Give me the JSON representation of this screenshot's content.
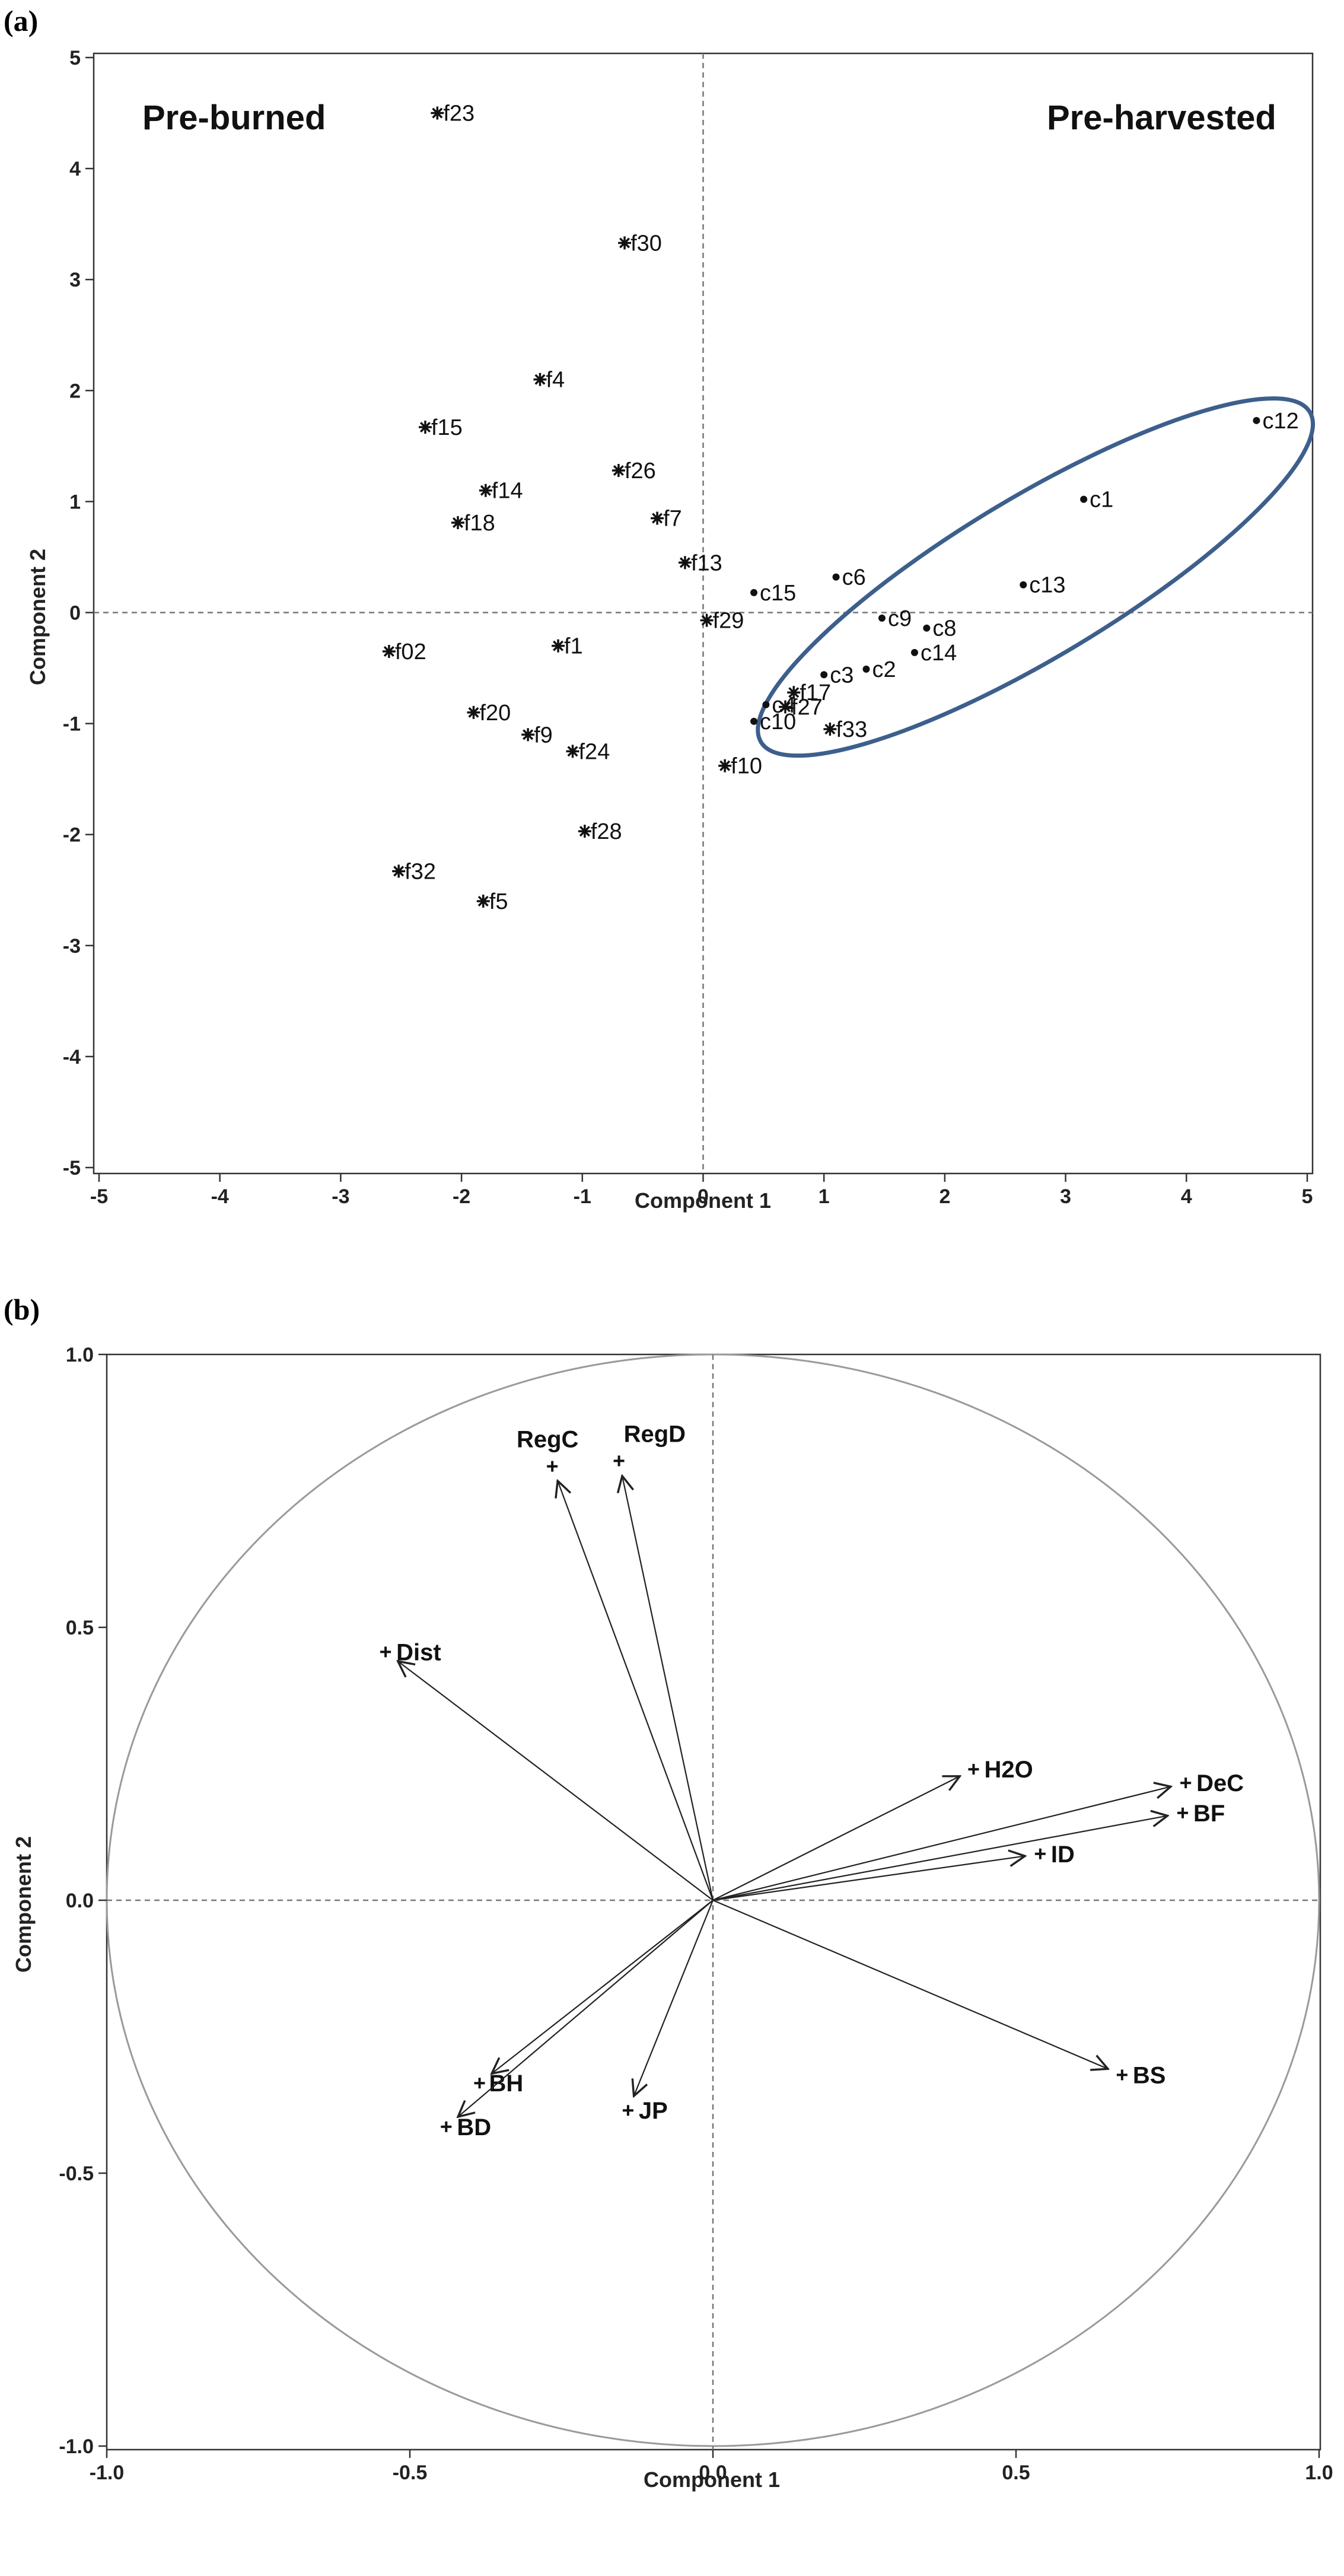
{
  "chart_data": [
    {
      "panel": "(a)",
      "type": "scatter",
      "xlabel": "Component 1",
      "ylabel": "Component 2",
      "xlim": [
        -5,
        5
      ],
      "ylim": [
        -5,
        5
      ],
      "xticks": [
        -5,
        -4,
        -3,
        -2,
        -1,
        0,
        1,
        2,
        3,
        4,
        5
      ],
      "yticks": [
        -5,
        -4,
        -3,
        -2,
        -1,
        0,
        1,
        2,
        3,
        4,
        5
      ],
      "reference_lines": {
        "x": 0,
        "y": 0
      },
      "annotations": {
        "left": "Pre-burned",
        "right": "Pre-harvested"
      },
      "cluster_ellipse": {
        "center": [
          2.75,
          0.32
        ],
        "semi_axes": [
          2.65,
          0.72
        ],
        "angle_deg": 31,
        "color": "#3d5f8c"
      },
      "points": [
        {
          "label": "f23",
          "x": -2.2,
          "y": 4.5,
          "marker": "*"
        },
        {
          "label": "f30",
          "x": -0.65,
          "y": 3.33,
          "marker": "*"
        },
        {
          "label": "f4",
          "x": -1.35,
          "y": 2.1,
          "marker": "*"
        },
        {
          "label": "f15",
          "x": -2.3,
          "y": 1.67,
          "marker": "*"
        },
        {
          "label": "f26",
          "x": -0.7,
          "y": 1.28,
          "marker": "*"
        },
        {
          "label": "f14",
          "x": -1.8,
          "y": 1.1,
          "marker": "*"
        },
        {
          "label": "f7",
          "x": -0.38,
          "y": 0.85,
          "marker": "*"
        },
        {
          "label": "f18",
          "x": -2.03,
          "y": 0.81,
          "marker": "*"
        },
        {
          "label": "f13",
          "x": -0.15,
          "y": 0.45,
          "marker": "*"
        },
        {
          "label": "f29",
          "x": 0.03,
          "y": -0.07,
          "marker": "*"
        },
        {
          "label": "f1",
          "x": -1.2,
          "y": -0.3,
          "marker": "*"
        },
        {
          "label": "f02",
          "x": -2.6,
          "y": -0.35,
          "marker": "*"
        },
        {
          "label": "f20",
          "x": -1.9,
          "y": -0.9,
          "marker": "*"
        },
        {
          "label": "f9",
          "x": -1.45,
          "y": -1.1,
          "marker": "*"
        },
        {
          "label": "f24",
          "x": -1.08,
          "y": -1.25,
          "marker": "*"
        },
        {
          "label": "f17",
          "x": 0.75,
          "y": -0.72,
          "marker": "*"
        },
        {
          "label": "f27",
          "x": 0.68,
          "y": -0.85,
          "marker": "*"
        },
        {
          "label": "f33",
          "x": 1.05,
          "y": -1.05,
          "marker": "*"
        },
        {
          "label": "f10",
          "x": 0.18,
          "y": -1.38,
          "marker": "*"
        },
        {
          "label": "f28",
          "x": -0.98,
          "y": -1.97,
          "marker": "*"
        },
        {
          "label": "f32",
          "x": -2.52,
          "y": -2.33,
          "marker": "*"
        },
        {
          "label": "f5",
          "x": -1.82,
          "y": -2.6,
          "marker": "*"
        },
        {
          "label": "c12",
          "x": 4.58,
          "y": 1.73,
          "marker": "•"
        },
        {
          "label": "c1",
          "x": 3.15,
          "y": 1.02,
          "marker": "•"
        },
        {
          "label": "c6",
          "x": 1.1,
          "y": 0.32,
          "marker": "•"
        },
        {
          "label": "c13",
          "x": 2.65,
          "y": 0.25,
          "marker": "•"
        },
        {
          "label": "c15",
          "x": 0.42,
          "y": 0.18,
          "marker": "•"
        },
        {
          "label": "c9",
          "x": 1.48,
          "y": -0.05,
          "marker": "•"
        },
        {
          "label": "c8",
          "x": 1.85,
          "y": -0.14,
          "marker": "•"
        },
        {
          "label": "c14",
          "x": 1.75,
          "y": -0.36,
          "marker": "•"
        },
        {
          "label": "c2",
          "x": 1.35,
          "y": -0.51,
          "marker": "•"
        },
        {
          "label": "c3",
          "x": 1.0,
          "y": -0.56,
          "marker": "•"
        },
        {
          "label": "c4",
          "x": 0.52,
          "y": -0.83,
          "marker": "•"
        },
        {
          "label": "c10",
          "x": 0.42,
          "y": -0.98,
          "marker": "•"
        }
      ]
    },
    {
      "panel": "(b)",
      "type": "vector",
      "xlabel": "Component 1",
      "ylabel": "Component 2",
      "xlim": [
        -1.0,
        1.0
      ],
      "ylim": [
        -1.0,
        1.0
      ],
      "xticks": [
        "-1.0",
        "-0.5",
        "0.0",
        "0.5",
        "1.0"
      ],
      "yticks": [
        "1.0",
        "0.5",
        "0.0",
        "-0.5",
        "-1.0"
      ],
      "unit_circle": true,
      "reference_lines": {
        "x": 0,
        "y": 0
      },
      "variables": [
        {
          "label": "RegC",
          "x": -0.265,
          "y": 0.795
        },
        {
          "label": "RegD",
          "x": -0.155,
          "y": 0.805
        },
        {
          "label": "Dist",
          "x": -0.54,
          "y": 0.455
        },
        {
          "label": "H2O",
          "x": 0.43,
          "y": 0.24
        },
        {
          "label": "DeC",
          "x": 0.78,
          "y": 0.215
        },
        {
          "label": "BF",
          "x": 0.775,
          "y": 0.16
        },
        {
          "label": "ID",
          "x": 0.54,
          "y": 0.085
        },
        {
          "label": "BS",
          "x": 0.675,
          "y": -0.32
        },
        {
          "label": "BH",
          "x": -0.385,
          "y": -0.335
        },
        {
          "label": "BD",
          "x": -0.44,
          "y": -0.415
        },
        {
          "label": "JP",
          "x": -0.14,
          "y": -0.385
        }
      ]
    }
  ]
}
